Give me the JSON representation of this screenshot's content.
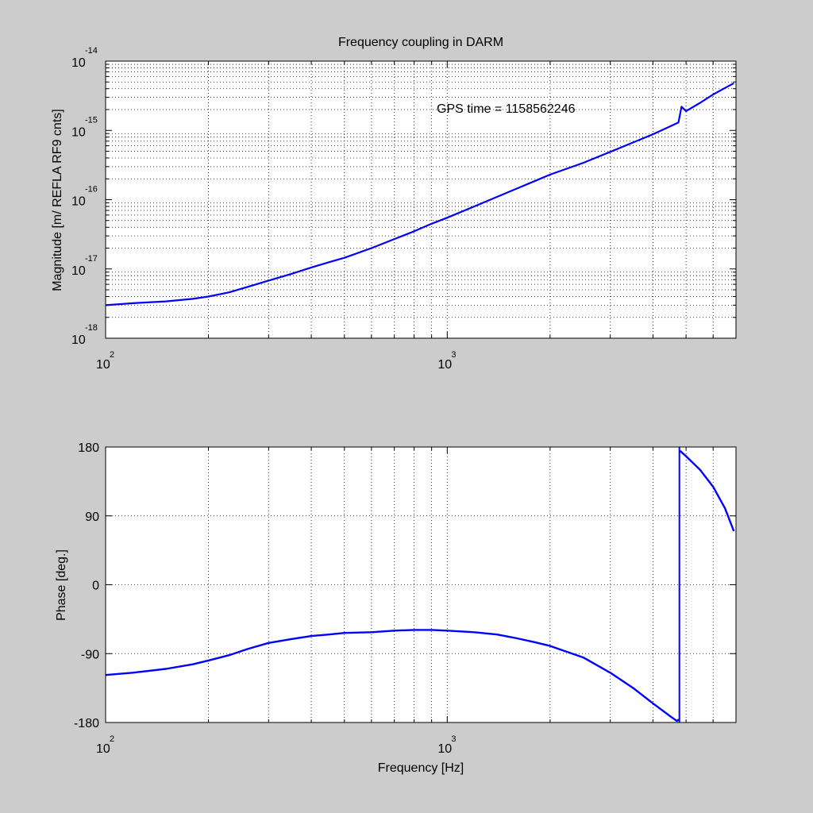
{
  "figure": {
    "background": "#cccccc",
    "axes_background": "#ffffff",
    "line_color": "#0000ff"
  },
  "chart_data": [
    {
      "type": "line",
      "title": "Frequency coupling in DARM",
      "xlabel": "",
      "ylabel": "Magnitude [m/ REFLA RF9 cnts]",
      "xscale": "log",
      "yscale": "log",
      "xlim": [
        100,
        7000
      ],
      "ylim": [
        1e-18,
        1e-14
      ],
      "grid": true,
      "annotation": "GPS time = 1158562246",
      "x_ticks": [
        {
          "base": "10",
          "exp": "2",
          "value": 100
        },
        {
          "base": "10",
          "exp": "3",
          "value": 1000
        }
      ],
      "y_ticks": [
        {
          "base": "10",
          "exp": "-18",
          "value": 1e-18
        },
        {
          "base": "10",
          "exp": "-17",
          "value": 1e-17
        },
        {
          "base": "10",
          "exp": "-16",
          "value": 1e-16
        },
        {
          "base": "10",
          "exp": "-15",
          "value": 1e-15
        },
        {
          "base": "10",
          "exp": "-14",
          "value": 1e-14
        }
      ],
      "series": [
        {
          "x": [
            100,
            120,
            150,
            180,
            200,
            230,
            260,
            300,
            350,
            400,
            450,
            500,
            600,
            700,
            800,
            900,
            1000,
            1200,
            1400,
            1600,
            1800,
            2000,
            2500,
            3000,
            3500,
            4000,
            4500,
            4750,
            4850,
            5000,
            5500,
            6000,
            6500,
            6900
          ],
          "y": [
            3e-18,
            3.2e-18,
            3.4e-18,
            3.7e-18,
            4e-18,
            4.6e-18,
            5.5e-18,
            6.8e-18,
            8.5e-18,
            1.05e-17,
            1.25e-17,
            1.45e-17,
            2e-17,
            2.7e-17,
            3.5e-17,
            4.5e-17,
            5.5e-17,
            8e-17,
            1.1e-16,
            1.45e-16,
            1.85e-16,
            2.3e-16,
            3.4e-16,
            4.9e-16,
            6.7e-16,
            8.8e-16,
            1.15e-15,
            1.3e-15,
            2.2e-15,
            1.9e-15,
            2.5e-15,
            3.3e-15,
            4.1e-15,
            4.8e-15
          ]
        }
      ]
    },
    {
      "type": "line",
      "title": "",
      "xlabel": "Frequency [Hz]",
      "ylabel": "Phase [deg.]",
      "xscale": "log",
      "xlim": [
        100,
        7000
      ],
      "ylim": [
        -180,
        180
      ],
      "grid": true,
      "x_ticks": [
        {
          "base": "10",
          "exp": "2",
          "value": 100
        },
        {
          "base": "10",
          "exp": "3",
          "value": 1000
        }
      ],
      "y_ticks": [
        "-180",
        "-90",
        "0",
        "90",
        "180"
      ],
      "series": [
        {
          "x": [
            100,
            120,
            150,
            180,
            200,
            230,
            260,
            300,
            350,
            400,
            450,
            500,
            600,
            700,
            800,
            900,
            1000,
            1200,
            1400,
            1600,
            1800,
            2000,
            2500,
            3000,
            3500,
            4000,
            4500,
            4700,
            4760
          ],
          "y": [
            -118,
            -115,
            -110,
            -104,
            -99,
            -92,
            -84,
            -76,
            -71,
            -67,
            -65,
            -63,
            -62,
            -60,
            -59,
            -59,
            -60,
            -62,
            -65,
            -70,
            -75,
            -80,
            -95,
            -115,
            -135,
            -155,
            -172,
            -178,
            -176
          ]
        },
        {
          "x": [
            4800,
            5000,
            5500,
            6000,
            6500,
            6900
          ],
          "y": [
            175,
            168,
            150,
            128,
            100,
            70
          ]
        }
      ]
    }
  ]
}
